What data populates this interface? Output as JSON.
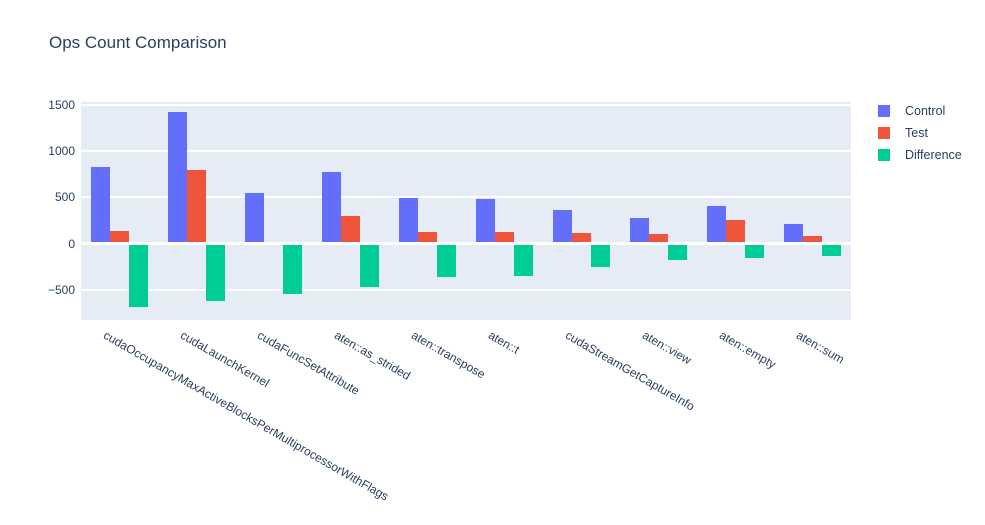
{
  "chart_data": {
    "type": "bar",
    "bar_mode": "group",
    "title": "Ops Count Comparison",
    "xlabel": "",
    "ylabel": "",
    "categories": [
      "cudaOccupancyMaxActiveBlocksPerMultiprocessorWithFlags",
      "cudaLaunchKernel",
      "cudaFuncSetAttribute",
      "aten::as_strided",
      "aten::transpose",
      "aten::t",
      "cudaStreamGetCaptureInfo",
      "aten::view",
      "aten::empty",
      "aten::sum"
    ],
    "series": [
      {
        "name": "Control",
        "color": "#636EFA",
        "values": [
          830,
          1420,
          550,
          770,
          490,
          485,
          365,
          280,
          410,
          215
        ]
      },
      {
        "name": "Test",
        "color": "#EF553B",
        "values": [
          140,
          800,
          5,
          300,
          130,
          130,
          110,
          100,
          255,
          80
        ]
      },
      {
        "name": "Difference",
        "color": "#00CC96",
        "values": [
          -690,
          -620,
          -545,
          -470,
          -360,
          -355,
          -255,
          -180,
          -155,
          -135
        ]
      }
    ],
    "yticks": [
      1500,
      1000,
      500,
      0,
      -500
    ],
    "ylim": [
      -825,
      1530
    ],
    "grid": true,
    "legend_position": "right",
    "plot_bg_color": "#E5ECF6",
    "grid_color": "#FFFFFF",
    "text_color": "#2A3F5F",
    "x_label_angle_deg": 30
  }
}
